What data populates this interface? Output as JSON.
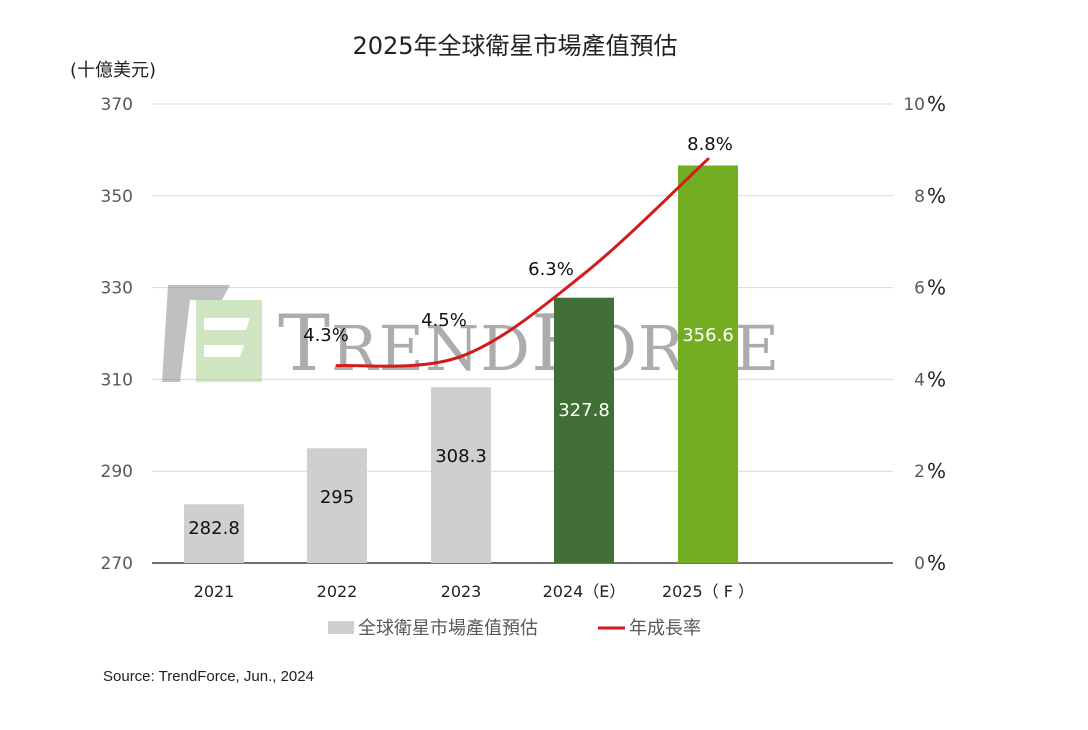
{
  "chart_data": {
    "type": "bar",
    "title": "2025年全球衛星市場產值預估",
    "ylabel": "(十億美元)",
    "categories": [
      "2021",
      "2022",
      "2023",
      "2024（E）",
      "2025（ F ）"
    ],
    "series": [
      {
        "name": "全球衛星市場產值預估",
        "type": "bar",
        "axis": "left",
        "values": [
          282.8,
          295,
          308.3,
          327.8,
          356.6
        ],
        "value_labels": [
          "282.8",
          "295",
          "308.3",
          "327.8",
          "356.6"
        ],
        "colors": [
          "#d0cece",
          "#d0cece",
          "#d0cece",
          "#416f35",
          "#72ad23"
        ]
      },
      {
        "name": "年成長率",
        "type": "line",
        "axis": "right",
        "color": "#d31b1b",
        "values": [
          null,
          4.3,
          4.5,
          6.3,
          8.8
        ],
        "value_labels": [
          "",
          "4.3%",
          "4.5%",
          "6.3%",
          "8.8%"
        ]
      }
    ],
    "ylim": [
      270,
      370
    ],
    "yticks": [
      "370",
      "350",
      "330",
      "310",
      "290",
      "270"
    ],
    "y2lim": [
      0,
      10
    ],
    "y2ticks": [
      "10",
      "8",
      "6",
      "4",
      "2",
      "0"
    ],
    "y2_unit": "%",
    "grid": true,
    "legend_position": "bottom"
  },
  "watermark": {
    "text": "TRENDFORCE",
    "logo_colors": [
      "#8e8e8e",
      "#a9cf8d"
    ]
  },
  "source": "Source: TrendForce, Jun., 2024"
}
